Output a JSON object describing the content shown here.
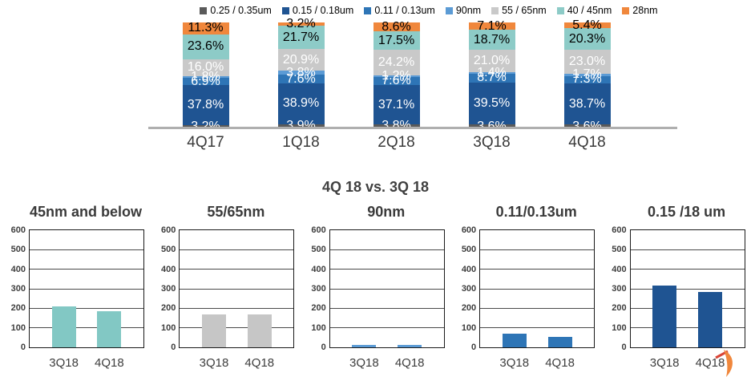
{
  "page": {
    "comparison_title": "4Q 18 vs. 3Q 18"
  },
  "chart_data": [
    {
      "id": "revenue-by-technology-stacked",
      "type": "bar",
      "stacked": true,
      "unit": "percent",
      "legend_position": "top",
      "categories": [
        "4Q17",
        "1Q18",
        "2Q18",
        "3Q18",
        "4Q18"
      ],
      "series": [
        {
          "name": "0.25 / 0.35um",
          "color": "#5A5A5A",
          "label_color": "#FFFFFF",
          "values": [
            3.2,
            3.9,
            3.8,
            3.6,
            3.6
          ]
        },
        {
          "name": "0.15 / 0.18um",
          "color": "#1F5492",
          "label_color": "#FFFFFF",
          "values": [
            37.8,
            38.9,
            37.1,
            39.5,
            38.7
          ]
        },
        {
          "name": "0.11 / 0.13um",
          "color": "#2E75B6",
          "label_color": "#FFFFFF",
          "values": [
            6.9,
            7.6,
            7.6,
            8.7,
            7.3
          ]
        },
        {
          "name": "90nm",
          "color": "#5B9BD5",
          "label_color": "#FFFFFF",
          "values": [
            1.8,
            3.8,
            1.2,
            1.4,
            1.7
          ]
        },
        {
          "name": "55 / 65nm",
          "color": "#C9C9C9",
          "label_color": "#FFFFFF",
          "values": [
            16.0,
            20.9,
            24.2,
            21.0,
            23.0
          ]
        },
        {
          "name": "40 / 45nm",
          "color": "#8DCBC7",
          "label_color": "#000000",
          "values": [
            23.6,
            21.7,
            17.5,
            18.7,
            20.3
          ]
        },
        {
          "name": "28nm",
          "color": "#F0873C",
          "label_color": "#000000",
          "values": [
            11.3,
            3.2,
            8.6,
            7.1,
            5.4
          ]
        }
      ]
    },
    {
      "id": "45nm-and-below",
      "type": "bar",
      "title": "45nm and below",
      "categories": [
        "3Q18",
        "4Q18"
      ],
      "values": [
        210,
        185
      ],
      "bar_color": "#82C8C4",
      "ylim": [
        0,
        600
      ],
      "ytick_step": 100,
      "grid": true
    },
    {
      "id": "55-65nm",
      "type": "bar",
      "title": "55/65nm",
      "categories": [
        "3Q18",
        "4Q18"
      ],
      "values": [
        170,
        170
      ],
      "bar_color": "#C6C6C6",
      "ylim": [
        0,
        600
      ],
      "ytick_step": 100,
      "grid": true
    },
    {
      "id": "90nm",
      "type": "bar",
      "title": "90nm",
      "categories": [
        "3Q18",
        "4Q18"
      ],
      "values": [
        12,
        12
      ],
      "bar_color": "#5B9BD5",
      "ylim": [
        0,
        600
      ],
      "ytick_step": 100,
      "grid": true
    },
    {
      "id": "0-11-0-13um",
      "type": "bar",
      "title": "0.11/0.13um",
      "categories": [
        "3Q18",
        "4Q18"
      ],
      "values": [
        68,
        55
      ],
      "bar_color": "#2E75B6",
      "ylim": [
        0,
        600
      ],
      "ytick_step": 100,
      "grid": true
    },
    {
      "id": "0-15-18um",
      "type": "bar",
      "title": "0.15 /18 um",
      "categories": [
        "3Q18",
        "4Q18"
      ],
      "values": [
        318,
        283
      ],
      "bar_color": "#1F5492",
      "ylim": [
        0,
        600
      ],
      "ytick_step": 100,
      "grid": true
    }
  ],
  "decorations": {
    "orange_swoosh_color": "#F0873C",
    "swoosh_tip_color": "#D94436"
  }
}
